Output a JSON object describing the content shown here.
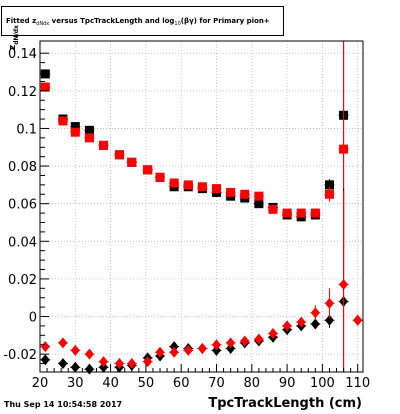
{
  "title": {
    "prefix": "Fitted  z",
    "sub1": "dNdx",
    "middle": " versus TpcTrackLength and log",
    "sub2": "10",
    "suffix": "(βγ) for Primary pion+"
  },
  "footer": "Thu Sep 14 10:54:58 2017",
  "xlabel": "TpcTrackLength (cm)",
  "ylabel": "z",
  "ylabel_sub": "dN/dx",
  "chart_data": {
    "type": "scatter",
    "x_ticks": [
      "20",
      "30",
      "40",
      "50",
      "60",
      "70",
      "80",
      "90",
      "100",
      "110"
    ],
    "y_ticks": [
      "-0.02",
      "0",
      "0.02",
      "0.04",
      "0.06",
      "0.08",
      "0.1",
      "0.12",
      "0.14"
    ],
    "xlim": [
      20,
      111.5
    ],
    "ylim": [
      -0.0295,
      0.1465
    ],
    "grid": true,
    "colors": {
      "black": "#000000",
      "red": "#ff0000"
    },
    "series": [
      {
        "marker": "square",
        "color": "#000000",
        "x": [
          21.5,
          26.5,
          30,
          34,
          38,
          42.5,
          46,
          50.5,
          54,
          58,
          62,
          66,
          70,
          74,
          78,
          82,
          86,
          90,
          94,
          98,
          102,
          106
        ],
        "y": [
          0.129,
          0.105,
          0.101,
          0.099,
          0.091,
          0.086,
          0.082,
          0.078,
          0.074,
          0.069,
          0.069,
          0.068,
          0.066,
          0.064,
          0.063,
          0.06,
          0.058,
          0.054,
          0.053,
          0.054,
          0.07,
          0.107
        ],
        "yerr": [
          0.0008,
          0.0008,
          0.0008,
          0.0008,
          0.0008,
          0.0008,
          0.0008,
          0.0008,
          0.0008,
          0.0008,
          0.0008,
          0.0008,
          0.0008,
          0.0008,
          0.0008,
          0.0008,
          0.0008,
          0.0008,
          0.0008,
          0.0008,
          0.003,
          0.07
        ]
      },
      {
        "marker": "square",
        "color": "#ff0000",
        "x": [
          21.5,
          26.5,
          30,
          34,
          38,
          42.5,
          46,
          50.5,
          54,
          58,
          62,
          66,
          70,
          74,
          78,
          82,
          86,
          90,
          94,
          98,
          102,
          106
        ],
        "y": [
          0.122,
          0.104,
          0.098,
          0.095,
          0.091,
          0.086,
          0.082,
          0.078,
          0.074,
          0.071,
          0.07,
          0.069,
          0.068,
          0.066,
          0.065,
          0.064,
          0.057,
          0.055,
          0.055,
          0.055,
          0.065,
          0.089
        ],
        "yerr": [
          0.0008,
          0.0008,
          0.0008,
          0.0008,
          0.0008,
          0.0008,
          0.0008,
          0.0008,
          0.0008,
          0.0008,
          0.0008,
          0.0008,
          0.0008,
          0.0008,
          0.0008,
          0.0008,
          0.0008,
          0.0008,
          0.0008,
          0.0008,
          0.004,
          0.07
        ]
      },
      {
        "marker": "diamond",
        "color": "#000000",
        "x": [
          21.5,
          26.5,
          30,
          34,
          38,
          42.5,
          46,
          50.5,
          54,
          58,
          62,
          66,
          70,
          74,
          78,
          82,
          86,
          90,
          94,
          98,
          102,
          106,
          110
        ],
        "y": [
          -0.023,
          -0.025,
          -0.027,
          -0.028,
          -0.027,
          -0.027,
          -0.026,
          -0.022,
          -0.021,
          -0.016,
          -0.017,
          -0.017,
          -0.018,
          -0.017,
          -0.014,
          -0.013,
          -0.011,
          -0.007,
          -0.005,
          -0.004,
          -0.002,
          0.008,
          -0.002
        ],
        "yerr": [
          0.0008,
          0.0008,
          0.0008,
          0.0008,
          0.0008,
          0.0008,
          0.0008,
          0.0008,
          0.0008,
          0.0008,
          0.0008,
          0.0008,
          0.0008,
          0.0008,
          0.0008,
          0.0008,
          0.0008,
          0.0008,
          0.0008,
          0.0008,
          0.004,
          0.06,
          0.0
        ]
      },
      {
        "marker": "diamond",
        "color": "#ff0000",
        "x": [
          21.5,
          26.5,
          30,
          34,
          38,
          42.5,
          46,
          50.5,
          54,
          58,
          62,
          66,
          70,
          74,
          78,
          82,
          86,
          90,
          94,
          98,
          102,
          106,
          110
        ],
        "y": [
          -0.016,
          -0.014,
          -0.018,
          -0.02,
          -0.024,
          -0.025,
          -0.025,
          -0.024,
          -0.019,
          -0.019,
          -0.018,
          -0.017,
          -0.015,
          -0.014,
          -0.013,
          -0.012,
          -0.009,
          -0.005,
          -0.003,
          0.002,
          0.007,
          0.017,
          -0.002
        ],
        "yerr": [
          0.0008,
          0.0008,
          0.0008,
          0.0008,
          0.0008,
          0.0008,
          0.0008,
          0.0008,
          0.0008,
          0.0008,
          0.0008,
          0.0008,
          0.0008,
          0.0008,
          0.0008,
          0.0008,
          0.0008,
          0.002,
          0.002,
          0.004,
          0.008,
          0.05,
          0.0
        ]
      }
    ]
  }
}
